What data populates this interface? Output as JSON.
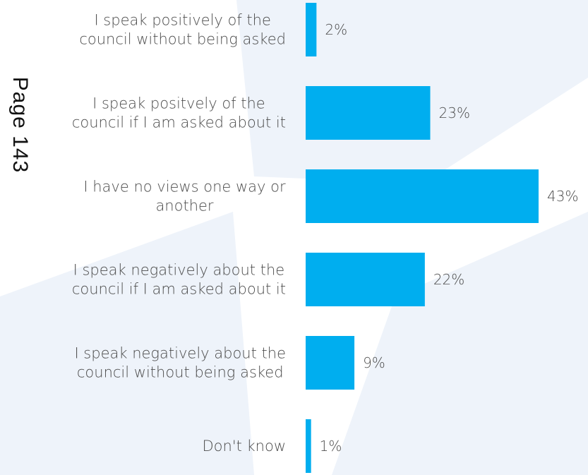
{
  "chart_data": {
    "type": "bar",
    "orientation": "horizontal",
    "categories": [
      [
        "I speak positively of the",
        "council without being asked"
      ],
      [
        "I speak positvely of the",
        "council if I am asked about it"
      ],
      [
        "I have no views one way or",
        "another"
      ],
      [
        "I speak negatively about the",
        "council if I am asked about it"
      ],
      [
        "I speak negatively about the",
        "council without being asked"
      ],
      [
        "Don't know"
      ]
    ],
    "values": [
      2,
      23,
      43,
      22,
      9,
      1
    ],
    "value_labels": [
      "2%",
      "23%",
      "43%",
      "22%",
      "9%",
      "1%"
    ],
    "xlim": [
      0,
      45
    ],
    "bar_color": "#00aeef",
    "grid": false,
    "legend": "none"
  },
  "page_stamp": "Page 143",
  "colors": {
    "background": "#ffffff",
    "watermark": "#eef3fa",
    "text": "#4d4d4d"
  }
}
